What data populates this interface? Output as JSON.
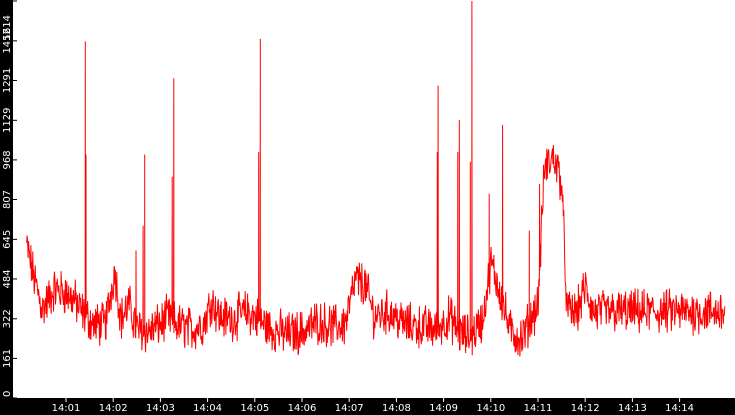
{
  "chart_data": {
    "type": "line",
    "title": "",
    "xlabel": "",
    "ylabel": "",
    "ylim": [
      0,
      1614
    ],
    "y_ticks": [
      0,
      161,
      322,
      484,
      645,
      807,
      968,
      1129,
      1291,
      1452,
      1614
    ],
    "x_ticks": [
      "14:01",
      "14:02",
      "14:03",
      "14:04",
      "14:05",
      "14:06",
      "14:07",
      "14:08",
      "14:09",
      "14:10",
      "14:11",
      "14:12",
      "14:13",
      "14:14"
    ],
    "x_range": [
      "14:00:10",
      "14:14:58"
    ],
    "grid": false,
    "line_color": "#ff0000",
    "axis_color": "#000000",
    "series": [
      {
        "x_seconds_start": 10,
        "x_seconds_end": 898,
        "base": [
          {
            "t": 10,
            "v": 620
          },
          {
            "t": 20,
            "v": 480
          },
          {
            "t": 30,
            "v": 360
          },
          {
            "t": 45,
            "v": 440
          },
          {
            "t": 58,
            "v": 430
          },
          {
            "t": 70,
            "v": 400
          },
          {
            "t": 80,
            "v": 350
          },
          {
            "t": 95,
            "v": 300
          },
          {
            "t": 110,
            "v": 300
          },
          {
            "t": 122,
            "v": 520
          },
          {
            "t": 130,
            "v": 320
          },
          {
            "t": 140,
            "v": 380
          },
          {
            "t": 150,
            "v": 280
          },
          {
            "t": 165,
            "v": 270
          },
          {
            "t": 180,
            "v": 300
          },
          {
            "t": 190,
            "v": 330
          },
          {
            "t": 200,
            "v": 300
          },
          {
            "t": 220,
            "v": 280
          },
          {
            "t": 235,
            "v": 300
          },
          {
            "t": 245,
            "v": 400
          },
          {
            "t": 255,
            "v": 330
          },
          {
            "t": 270,
            "v": 320
          },
          {
            "t": 290,
            "v": 350
          },
          {
            "t": 300,
            "v": 330
          },
          {
            "t": 320,
            "v": 280
          },
          {
            "t": 340,
            "v": 260
          },
          {
            "t": 360,
            "v": 270
          },
          {
            "t": 380,
            "v": 310
          },
          {
            "t": 400,
            "v": 290
          },
          {
            "t": 415,
            "v": 300
          },
          {
            "t": 428,
            "v": 480
          },
          {
            "t": 440,
            "v": 460
          },
          {
            "t": 452,
            "v": 330
          },
          {
            "t": 470,
            "v": 350
          },
          {
            "t": 490,
            "v": 300
          },
          {
            "t": 510,
            "v": 290
          },
          {
            "t": 530,
            "v": 280
          },
          {
            "t": 548,
            "v": 330
          },
          {
            "t": 560,
            "v": 260
          },
          {
            "t": 575,
            "v": 250
          },
          {
            "t": 590,
            "v": 320
          },
          {
            "t": 600,
            "v": 550
          },
          {
            "t": 610,
            "v": 450
          },
          {
            "t": 618,
            "v": 350
          },
          {
            "t": 625,
            "v": 270
          },
          {
            "t": 640,
            "v": 240
          },
          {
            "t": 650,
            "v": 320
          },
          {
            "t": 660,
            "v": 380
          },
          {
            "t": 668,
            "v": 930
          },
          {
            "t": 680,
            "v": 980
          },
          {
            "t": 690,
            "v": 880
          },
          {
            "t": 697,
            "v": 350
          },
          {
            "t": 710,
            "v": 350
          },
          {
            "t": 720,
            "v": 450
          },
          {
            "t": 730,
            "v": 350
          }
        ],
        "spikes": [
          {
            "t": 84.5,
            "v": 1450
          },
          {
            "t": 85.4,
            "v": 990
          },
          {
            "t": 149,
            "v": 600
          },
          {
            "t": 158,
            "v": 700
          },
          {
            "t": 160,
            "v": 990
          },
          {
            "t": 195,
            "v": 900
          },
          {
            "t": 197,
            "v": 1300
          },
          {
            "t": 305,
            "v": 1000
          },
          {
            "t": 307,
            "v": 1460
          },
          {
            "t": 532,
            "v": 1000
          },
          {
            "t": 533,
            "v": 1270
          },
          {
            "t": 558,
            "v": 1000
          },
          {
            "t": 560,
            "v": 1130
          },
          {
            "t": 574,
            "v": 960
          },
          {
            "t": 576,
            "v": 1614
          },
          {
            "t": 598,
            "v": 830
          },
          {
            "t": 615,
            "v": 1110
          },
          {
            "t": 649,
            "v": 680
          },
          {
            "t": 662,
            "v": 870
          }
        ]
      }
    ]
  }
}
